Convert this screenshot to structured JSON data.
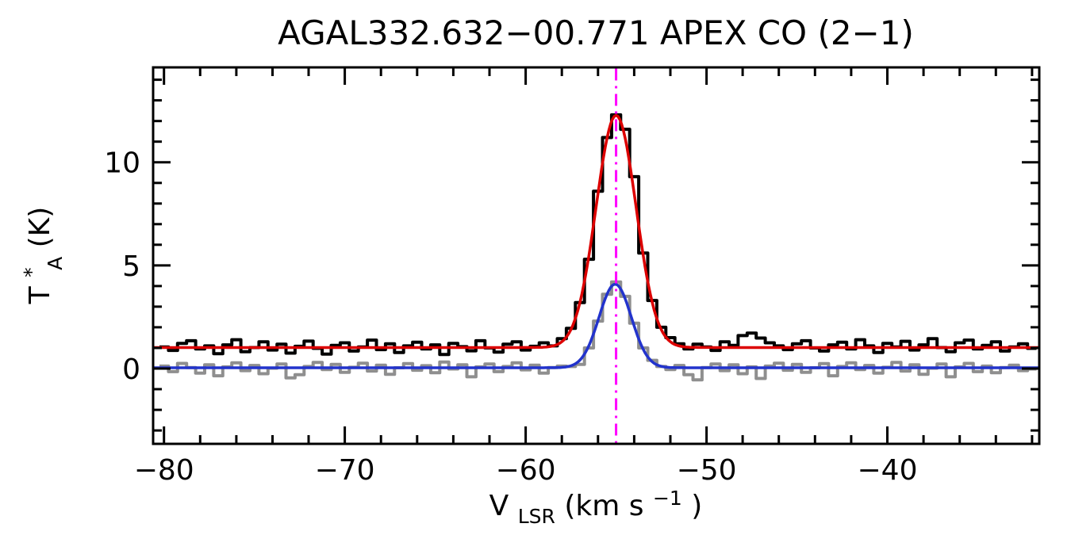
{
  "chart_data": {
    "type": "line",
    "title": "AGAL332.632−00.771  APEX CO (2−1)",
    "xlabel_parts": {
      "main": "V",
      "sub": "LSR",
      "mid": " (km s",
      "sup": "−1",
      "end": ")"
    },
    "ylabel_parts": {
      "main": "T",
      "sup": "*",
      "sub": "A",
      "rest": " (K)"
    },
    "xlim": [
      -80.6,
      -31.6
    ],
    "ylim": [
      -3.65,
      14.6
    ],
    "x_minor_step": 2,
    "y_minor_step": 1,
    "x_ticks": [
      {
        "value": -80,
        "label": "−80"
      },
      {
        "value": -70,
        "label": "−70"
      },
      {
        "value": -60,
        "label": "−60"
      },
      {
        "value": -50,
        "label": "−50"
      },
      {
        "value": -40,
        "label": "−40"
      }
    ],
    "y_ticks": [
      {
        "value": 0,
        "label": "0"
      },
      {
        "value": 5,
        "label": "5"
      },
      {
        "value": 10,
        "label": "10"
      }
    ],
    "series": [
      {
        "name": "spectrum-main",
        "style": "histogram",
        "color": "#000000",
        "line_width": 4,
        "x_start": -80,
        "dx": 0.5,
        "values": [
          1.05,
          0.88,
          1.22,
          1.35,
          0.95,
          1.1,
          0.72,
          1.15,
          1.4,
          0.82,
          1.02,
          1.3,
          0.9,
          1.18,
          0.75,
          1.08,
          1.33,
          0.98,
          0.7,
          1.12,
          1.25,
          0.85,
          1.05,
          1.38,
          0.92,
          1.2,
          0.78,
          1.1,
          1.28,
          0.95,
          1.15,
          0.68,
          1.22,
          1.06,
          0.86,
          1.35,
          1.0,
          0.8,
          1.18,
          1.3,
          0.9,
          1.08,
          1.25,
          1.1,
          1.45,
          1.95,
          3.2,
          5.3,
          8.6,
          11.2,
          12.3,
          11.6,
          9.3,
          5.6,
          3.3,
          2.0,
          1.5,
          1.2,
          0.95,
          1.18,
          1.05,
          0.88,
          1.3,
          1.12,
          1.6,
          1.72,
          1.48,
          1.25,
          1.1,
          0.92,
          1.2,
          1.35,
          1.0,
          0.85,
          1.15,
          1.28,
          0.95,
          1.4,
          1.1,
          0.78,
          1.22,
          1.05,
          1.32,
          0.9,
          1.15,
          1.45,
          1.02,
          0.82,
          1.25,
          1.38,
          0.95,
          1.12,
          1.3,
          0.85,
          1.05,
          1.2,
          0.98
        ]
      },
      {
        "name": "spectrum-secondary",
        "style": "histogram",
        "color": "#8f8f8f",
        "line_width": 4,
        "x_start": -80,
        "dx": 0.5,
        "values": [
          0.12,
          -0.15,
          0.25,
          0.05,
          -0.22,
          0.18,
          -0.35,
          0.08,
          0.28,
          -0.1,
          0.15,
          -0.25,
          0.02,
          0.22,
          -0.45,
          -0.3,
          0.1,
          0.3,
          -0.05,
          0.2,
          -0.18,
          0.06,
          0.26,
          -0.12,
          0.16,
          -0.28,
          0.04,
          0.24,
          -0.08,
          0.14,
          -0.2,
          0.32,
          -0.02,
          0.18,
          -0.4,
          0.08,
          0.22,
          -0.15,
          0.1,
          0.28,
          -0.06,
          0.16,
          -0.22,
          0.05,
          0.12,
          0.1,
          0.2,
          1.0,
          2.3,
          3.6,
          4.2,
          3.5,
          2.2,
          1.0,
          0.4,
          0.1,
          -0.05,
          0.15,
          -0.3,
          -0.55,
          0.05,
          0.22,
          -0.1,
          0.18,
          -0.25,
          0.08,
          -0.48,
          0.12,
          0.26,
          -0.08,
          0.2,
          -0.18,
          0.04,
          0.24,
          -0.35,
          0.1,
          0.28,
          -0.05,
          0.15,
          -0.22,
          0.06,
          0.3,
          -0.12,
          0.18,
          -0.28,
          0.02,
          0.22,
          -0.4,
          0.08,
          0.25,
          -0.15,
          0.12,
          -0.2,
          0.05,
          0.16,
          -0.1,
          -0.02
        ]
      }
    ],
    "fits": [
      {
        "name": "gaussian-fit-main",
        "color": "#dc0000",
        "line_width": 3.5,
        "baseline": 1.02,
        "amplitude": 11.25,
        "center": -55.0,
        "fwhm": 2.6
      },
      {
        "name": "gaussian-fit-secondary",
        "color": "#2233cc",
        "line_width": 3.5,
        "baseline": 0.04,
        "amplitude": 4.05,
        "center": -55.05,
        "fwhm": 2.1
      }
    ],
    "reference_line": {
      "name": "velocity-marker",
      "x": -55.0,
      "color": "#ff00ff",
      "style": "dash-dot",
      "line_width": 3
    }
  }
}
